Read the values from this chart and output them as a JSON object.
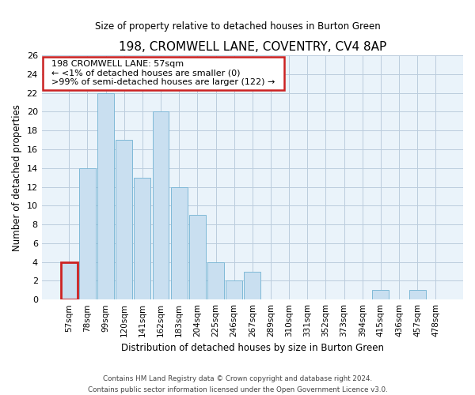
{
  "title": "198, CROMWELL LANE, COVENTRY, CV4 8AP",
  "subtitle": "Size of property relative to detached houses in Burton Green",
  "xlabel": "Distribution of detached houses by size in Burton Green",
  "ylabel": "Number of detached properties",
  "bar_labels": [
    "57sqm",
    "78sqm",
    "99sqm",
    "120sqm",
    "141sqm",
    "162sqm",
    "183sqm",
    "204sqm",
    "225sqm",
    "246sqm",
    "267sqm",
    "289sqm",
    "310sqm",
    "331sqm",
    "352sqm",
    "373sqm",
    "394sqm",
    "415sqm",
    "436sqm",
    "457sqm",
    "478sqm"
  ],
  "bar_values": [
    4,
    14,
    22,
    17,
    13,
    20,
    12,
    9,
    4,
    2,
    3,
    0,
    0,
    0,
    0,
    0,
    0,
    1,
    0,
    1,
    0
  ],
  "bar_color": "#c9dff0",
  "bar_edge_color": "#7fb9d7",
  "highlight_bar_index": 0,
  "highlight_color": "#cc2222",
  "ylim": [
    0,
    26
  ],
  "yticks": [
    0,
    2,
    4,
    6,
    8,
    10,
    12,
    14,
    16,
    18,
    20,
    22,
    24,
    26
  ],
  "annotation_title": "198 CROMWELL LANE: 57sqm",
  "annotation_line1": "← <1% of detached houses are smaller (0)",
  "annotation_line2": ">99% of semi-detached houses are larger (122) →",
  "annotation_box_color": "#ffffff",
  "annotation_box_edge_color": "#cc2222",
  "footer_line1": "Contains HM Land Registry data © Crown copyright and database right 2024.",
  "footer_line2": "Contains public sector information licensed under the Open Government Licence v3.0.",
  "background_color": "#ffffff",
  "grid_color": "#bbccdd",
  "plot_bg_color": "#eaf3fa"
}
